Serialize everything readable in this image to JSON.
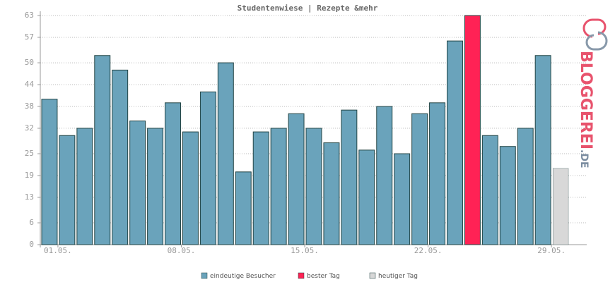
{
  "chart_data": {
    "type": "bar",
    "title": "Studentenwiese | Rezepte &mehr",
    "categories": [
      "01.05.",
      null,
      null,
      null,
      null,
      null,
      null,
      "08.05.",
      null,
      null,
      null,
      null,
      null,
      null,
      "15.05.",
      null,
      null,
      null,
      null,
      null,
      null,
      "22.05.",
      null,
      null,
      null,
      null,
      null,
      null,
      "29.05.",
      null,
      null
    ],
    "series": [
      {
        "name": "eindeutige Besucher",
        "color": "#6aa3bb",
        "values": [
          40,
          30,
          32,
          52,
          48,
          34,
          32,
          39,
          31,
          42,
          50,
          20,
          31,
          32,
          36,
          32,
          28,
          37,
          26,
          38,
          25,
          36,
          39,
          56,
          null,
          30,
          27,
          32,
          52,
          null,
          null
        ]
      },
      {
        "name": "bester Tag",
        "color": "#ff2255",
        "values": [
          null,
          null,
          null,
          null,
          null,
          null,
          null,
          null,
          null,
          null,
          null,
          null,
          null,
          null,
          null,
          null,
          null,
          null,
          null,
          null,
          null,
          null,
          null,
          null,
          63,
          null,
          null,
          null,
          null,
          null,
          null
        ]
      },
      {
        "name": "heutiger Tag",
        "color": "#d8d8d8",
        "values": [
          null,
          null,
          null,
          null,
          null,
          null,
          null,
          null,
          null,
          null,
          null,
          null,
          null,
          null,
          null,
          null,
          null,
          null,
          null,
          null,
          null,
          null,
          null,
          null,
          null,
          null,
          null,
          null,
          null,
          21,
          null
        ]
      }
    ],
    "ylim": [
      0,
      63
    ],
    "yticks": [
      0,
      6,
      13,
      19,
      25,
      32,
      38,
      44,
      50,
      57,
      63
    ],
    "grid": true,
    "watermark": [
      "BLOGGEREI",
      ".DE"
    ]
  }
}
